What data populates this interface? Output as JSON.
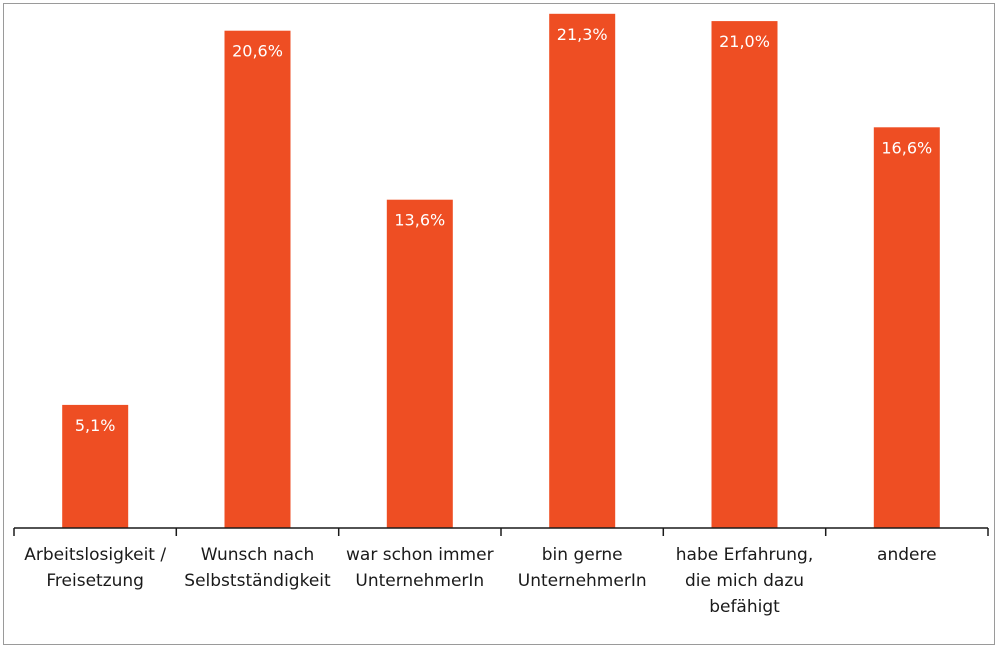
{
  "chart_data": {
    "type": "bar",
    "title": "",
    "xlabel": "",
    "ylabel": "",
    "categories": [
      "Arbeitslosigkeit /\nFreisetzung",
      "Wunsch nach\nSelbstständigkeit",
      "war schon immer\nUnternehmerIn",
      "bin gerne\nUnternehmerIn",
      "habe Erfahrung,\ndie mich dazu\nbefähigt",
      "andere"
    ],
    "values": [
      5.1,
      20.6,
      13.6,
      21.3,
      21.0,
      16.6
    ],
    "data_labels": [
      "5,1%",
      "20,6%",
      "13,6%",
      "21,3%",
      "21,0%",
      "16,6%"
    ],
    "ylim": [
      0,
      21.5
    ],
    "grid": false,
    "legend": "none",
    "bar_color": "#EE4E23",
    "label_color": "#FFFFFF"
  }
}
